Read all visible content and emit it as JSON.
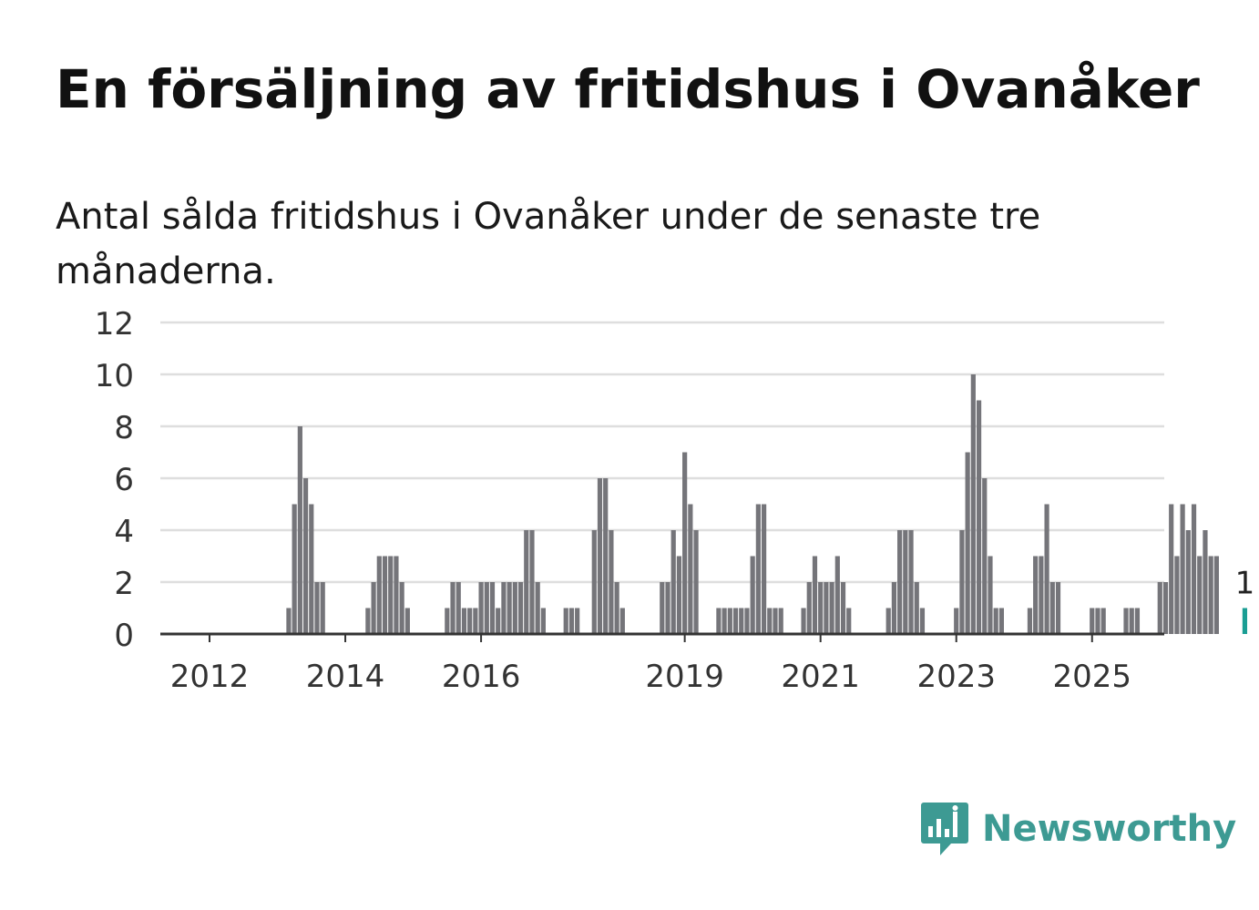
{
  "header": {
    "title": "En försäljning av fritidshus i Ovanåker",
    "subtitle": "Antal sålda fritidshus i Ovanåker under de senaste tre månaderna."
  },
  "brand": {
    "name": "Newsworthy",
    "icon": "newsworthy-chat-bars-icon",
    "color": "#3d9a93"
  },
  "chart_data": {
    "type": "bar",
    "x_start": "2012-01",
    "x_ticks": [
      "2012",
      "2014",
      "2016",
      "2019",
      "2021",
      "2023",
      "2025"
    ],
    "y_ticks": [
      0,
      2,
      4,
      6,
      8,
      10,
      12
    ],
    "ylim": [
      0,
      12
    ],
    "grid": true,
    "bar_color": "#75757a",
    "highlight_color": "#1a9e94",
    "highlight_label": "1",
    "values": [
      0,
      0,
      0,
      0,
      0,
      0,
      0,
      0,
      0,
      0,
      0,
      0,
      0,
      0,
      1,
      5,
      8,
      6,
      5,
      2,
      2,
      0,
      0,
      0,
      0,
      0,
      0,
      0,
      1,
      2,
      3,
      3,
      3,
      3,
      2,
      1,
      0,
      0,
      0,
      0,
      0,
      0,
      1,
      2,
      2,
      1,
      1,
      1,
      2,
      2,
      2,
      1,
      2,
      2,
      2,
      2,
      4,
      4,
      2,
      1,
      0,
      0,
      0,
      1,
      1,
      1,
      0,
      0,
      4,
      6,
      6,
      4,
      2,
      1,
      0,
      0,
      0,
      0,
      0,
      0,
      2,
      2,
      4,
      3,
      7,
      5,
      4,
      0,
      0,
      0,
      1,
      1,
      1,
      1,
      1,
      1,
      3,
      5,
      5,
      1,
      1,
      1,
      0,
      0,
      0,
      1,
      2,
      3,
      2,
      2,
      2,
      3,
      2,
      1,
      0,
      0,
      0,
      0,
      0,
      0,
      1,
      2,
      4,
      4,
      4,
      2,
      1,
      0,
      0,
      0,
      0,
      0,
      1,
      4,
      7,
      10,
      9,
      6,
      3,
      1,
      1,
      0,
      0,
      0,
      0,
      1,
      3,
      3,
      5,
      2,
      2,
      0,
      0,
      0,
      0,
      0,
      1,
      1,
      1,
      0,
      0,
      0,
      1,
      1,
      1,
      0,
      0,
      0,
      2,
      2,
      5,
      3,
      5,
      4,
      5,
      3,
      4,
      3,
      3,
      0,
      0,
      0,
      0,
      1
    ]
  }
}
